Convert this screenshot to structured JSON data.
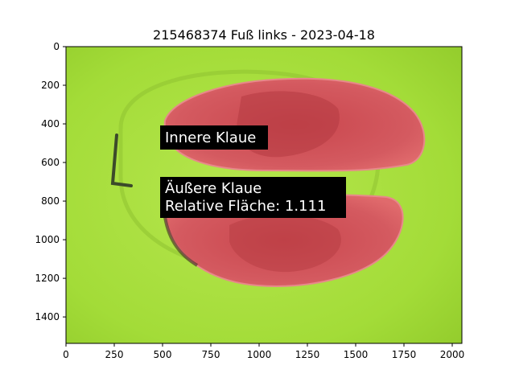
{
  "title": "215468374 Fuß links - 2023-04-18",
  "annotations": {
    "inner": "Innere Klaue",
    "outer_line1": "Äußere Klaue",
    "outer_line2": "Relative Fläche: 1.111"
  },
  "axes": {
    "x_ticks": [
      "0",
      "250",
      "500",
      "750",
      "1000",
      "1250",
      "1500",
      "1750",
      "2000"
    ],
    "y_ticks": [
      "0",
      "200",
      "400",
      "600",
      "800",
      "1000",
      "1200",
      "1400"
    ]
  },
  "image": {
    "description_colors": {
      "background": "#a6e03c",
      "claw": "#d9555b",
      "claw_dark": "#b83a40",
      "label_box": "#000000",
      "label_text": "#ffffff"
    }
  }
}
